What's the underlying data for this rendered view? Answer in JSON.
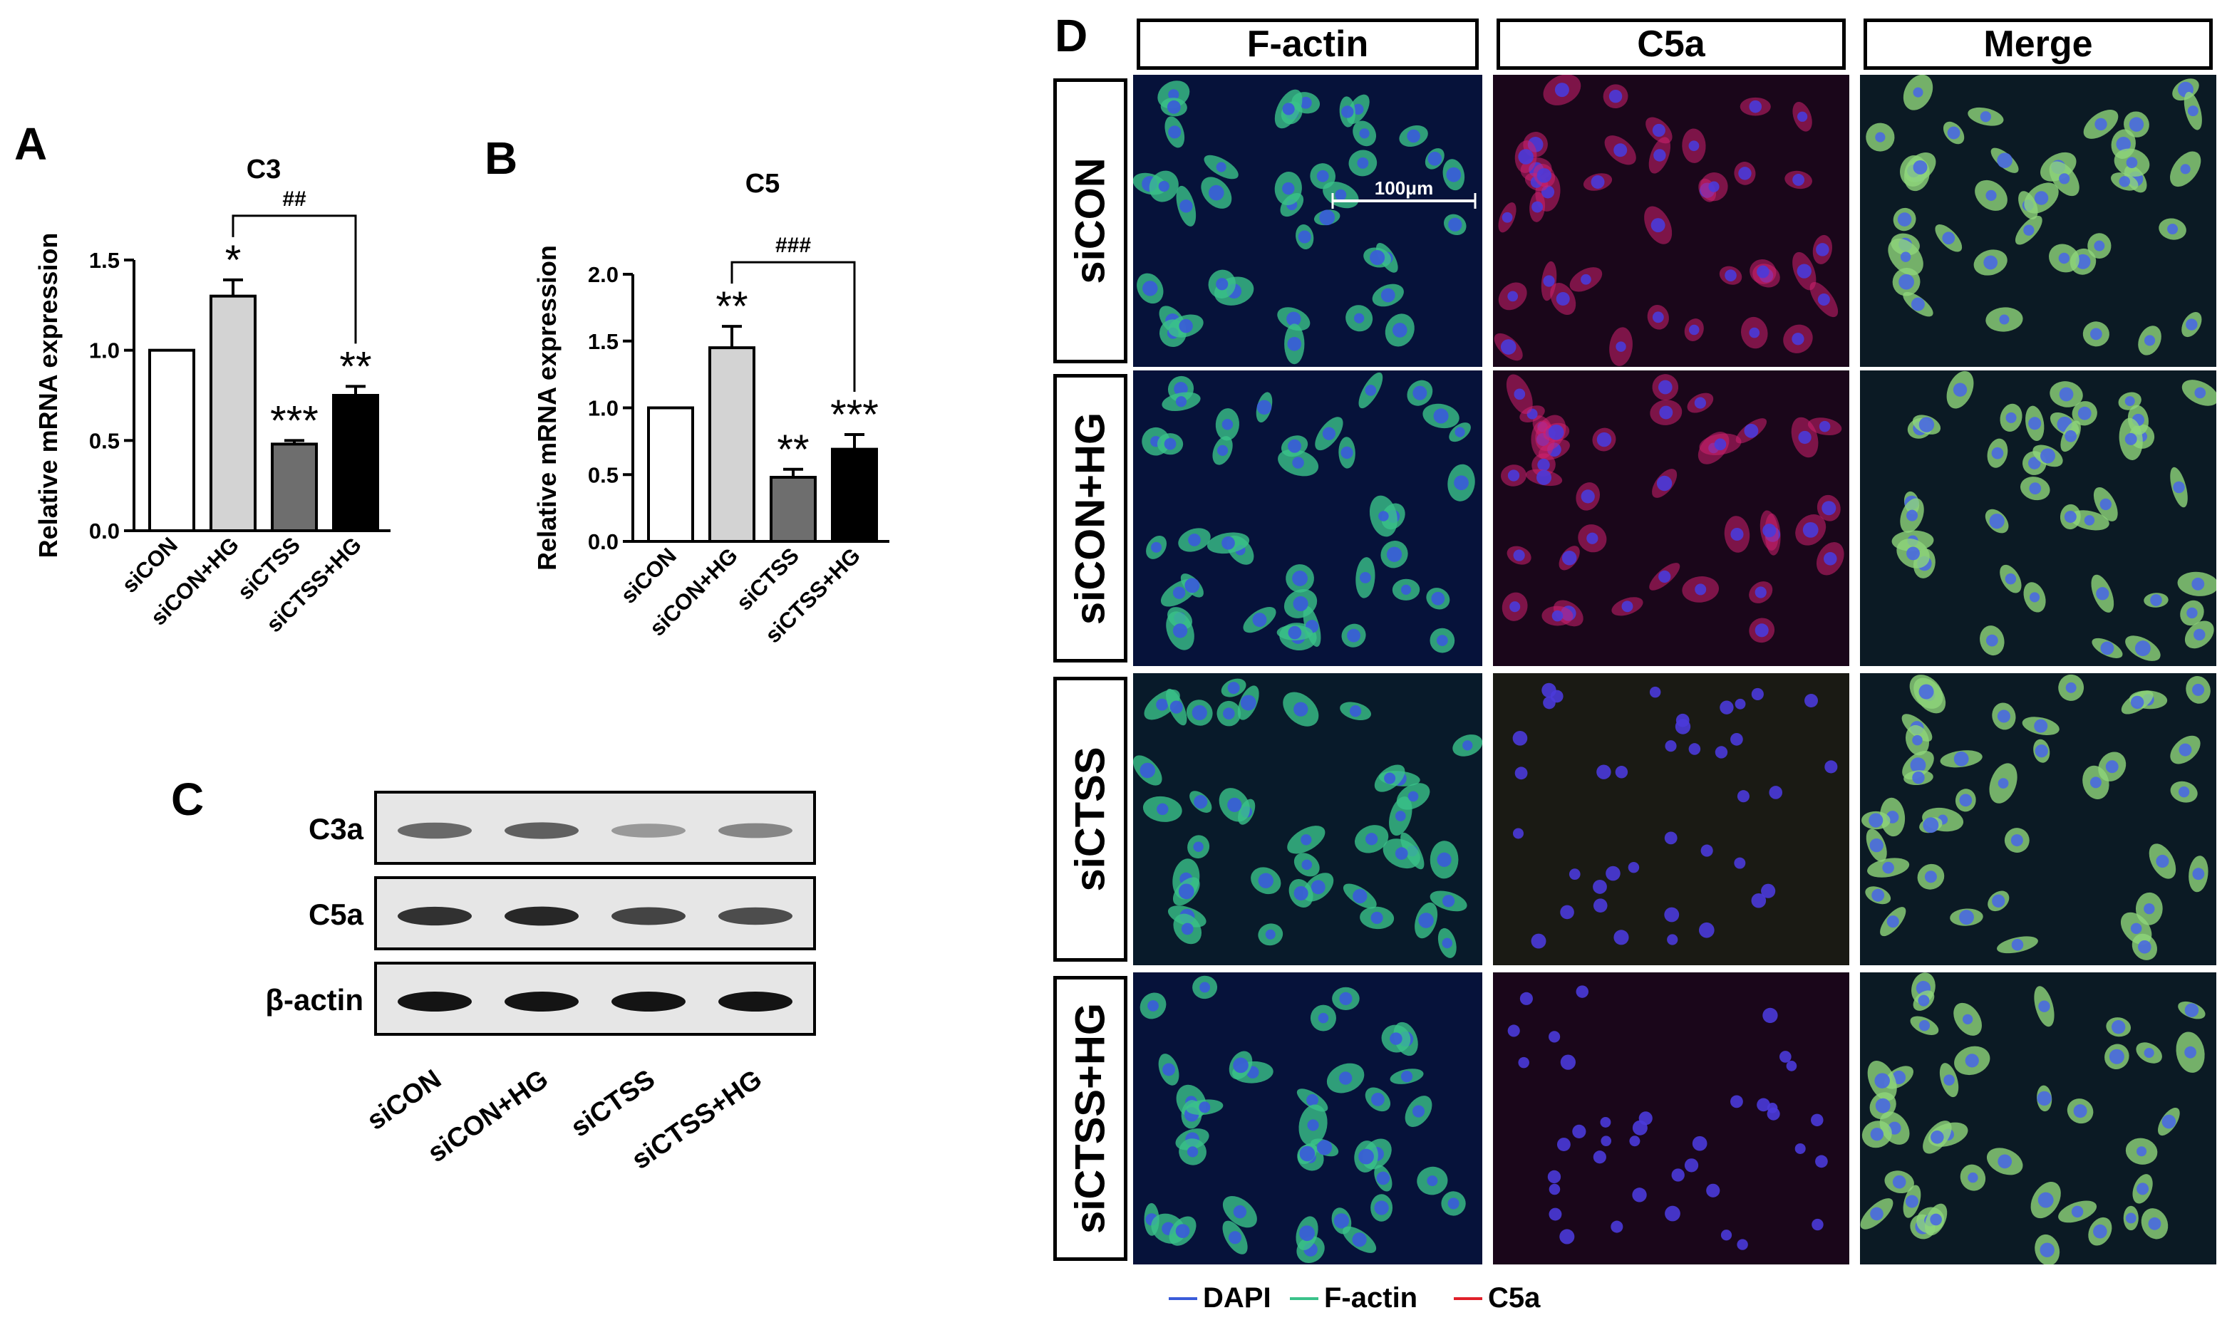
{
  "panels": {
    "a": "A",
    "b": "B",
    "c": "C",
    "d": "D"
  },
  "chart_data": [
    {
      "type": "bar",
      "title": "C3",
      "ylabel": "Relative mRNA expression",
      "categories": [
        "siCON",
        "siCON+HG",
        "siCTSS",
        "siCTSS+HG"
      ],
      "values": [
        1.0,
        1.3,
        0.48,
        0.75
      ],
      "errors": [
        0,
        0.09,
        0.02,
        0.05
      ],
      "significance": [
        "",
        "*",
        "***",
        "**"
      ],
      "bar_colors": [
        "#ffffff",
        "#d3d3d3",
        "#6e6e6e",
        "#000000"
      ],
      "ylim": [
        0,
        1.5
      ],
      "yticks": [
        "0.0",
        "0.5",
        "1.0",
        "1.5"
      ],
      "bracket": {
        "from": 1,
        "to": 3,
        "label": "##"
      }
    },
    {
      "type": "bar",
      "title": "C5",
      "ylabel": "Relative mRNA expression",
      "categories": [
        "siCON",
        "siCON+HG",
        "siCTSS",
        "siCTSS+HG"
      ],
      "values": [
        1.0,
        1.45,
        0.48,
        0.69
      ],
      "errors": [
        0,
        0.16,
        0.06,
        0.11
      ],
      "significance": [
        "",
        "**",
        "**",
        "***"
      ],
      "bar_colors": [
        "#ffffff",
        "#d3d3d3",
        "#6e6e6e",
        "#000000"
      ],
      "ylim": [
        0,
        2.0
      ],
      "yticks": [
        "0.0",
        "0.5",
        "1.0",
        "1.5",
        "2.0"
      ],
      "bracket": {
        "from": 1,
        "to": 3,
        "label": "###"
      }
    }
  ],
  "blot": {
    "rows": [
      {
        "label": "C3a",
        "intensities": [
          0.55,
          0.6,
          0.3,
          0.4
        ]
      },
      {
        "label": "C5a",
        "intensities": [
          0.85,
          0.9,
          0.75,
          0.7
        ]
      },
      {
        "label": "β-actin",
        "intensities": [
          1.0,
          1.0,
          1.0,
          1.0
        ]
      }
    ],
    "lanes": [
      "siCON",
      "siCON+HG",
      "siCTSS",
      "siCTSS+HG"
    ]
  },
  "micrographs": {
    "columns": [
      "F-actin",
      "C5a",
      "Merge"
    ],
    "rows": [
      "siCON",
      "siCON+HG",
      "siCTSS",
      "siCTSS+HG"
    ],
    "scale_bar": "100μm",
    "legend": [
      {
        "label": "DAPI",
        "color": "#3a5bd9"
      },
      {
        "label": "F-actin",
        "color": "#3ac28a"
      },
      {
        "label": "C5a",
        "color": "#e0202a"
      }
    ]
  }
}
